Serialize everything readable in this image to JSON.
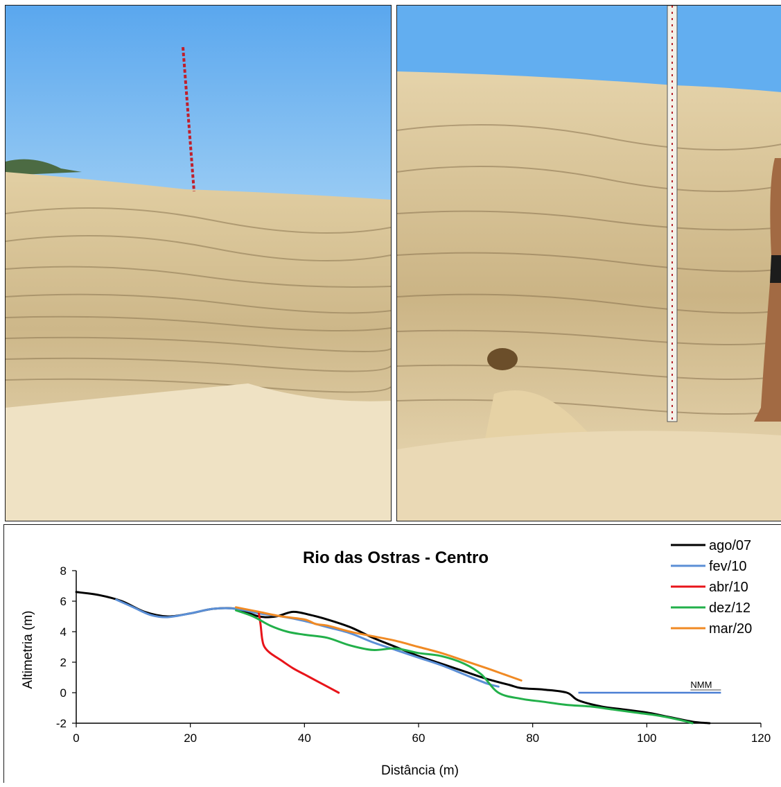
{
  "photos": [
    {
      "name": "left-photo"
    },
    {
      "name": "right-photo"
    }
  ],
  "chart_data": {
    "type": "line",
    "title": "Rio das Ostras - Centro",
    "xlabel": "Distância  (m)",
    "ylabel": "Altimetria  (m)",
    "xlim": [
      0,
      120
    ],
    "ylim": [
      -2,
      8
    ],
    "xticks": [
      0,
      20,
      40,
      60,
      80,
      100,
      120
    ],
    "yticks": [
      -2,
      0,
      2,
      4,
      6,
      8
    ],
    "grid": false,
    "legend_position": "top-right",
    "reference_line": {
      "label": "NMM",
      "y": 0,
      "x": [
        88,
        113
      ],
      "color": "#4a7fd4"
    },
    "series": [
      {
        "name": "ago/07",
        "color": "#000000",
        "x": [
          0,
          4,
          8,
          12,
          16,
          20,
          24,
          28,
          32,
          35,
          38,
          41,
          44,
          48,
          52,
          56,
          60,
          64,
          68,
          72,
          76,
          78,
          82,
          86,
          88,
          92,
          96,
          100,
          104,
          108,
          111
        ],
        "y": [
          6.6,
          6.4,
          6.0,
          5.3,
          5.0,
          5.2,
          5.5,
          5.5,
          5.0,
          5.0,
          5.3,
          5.1,
          4.8,
          4.3,
          3.6,
          3.0,
          2.4,
          1.9,
          1.4,
          0.9,
          0.5,
          0.3,
          0.2,
          0.0,
          -0.5,
          -0.9,
          -1.1,
          -1.3,
          -1.6,
          -1.9,
          -2.0
        ]
      },
      {
        "name": "fev/10",
        "color": "#5b8fd6",
        "x": [
          7,
          10,
          13,
          16,
          20,
          24,
          28,
          32,
          36,
          40,
          44,
          48,
          52,
          56,
          60,
          64,
          68,
          72,
          74
        ],
        "y": [
          6.1,
          5.6,
          5.1,
          4.95,
          5.2,
          5.5,
          5.5,
          5.2,
          5.0,
          4.7,
          4.3,
          3.9,
          3.3,
          2.8,
          2.3,
          1.8,
          1.2,
          0.6,
          0.4
        ]
      },
      {
        "name": "abr/10",
        "color": "#e8141a",
        "x": [
          32,
          32.3,
          32.6,
          33,
          34,
          36,
          38,
          40,
          42,
          44,
          46
        ],
        "y": [
          5.2,
          4.5,
          3.5,
          3.0,
          2.6,
          2.1,
          1.6,
          1.2,
          0.8,
          0.4,
          0.0
        ]
      },
      {
        "name": "dez/12",
        "color": "#22b04a",
        "x": [
          28,
          31,
          34,
          37,
          40,
          44,
          48,
          52,
          56,
          60,
          64,
          68,
          71,
          74,
          78,
          82,
          86,
          90,
          94,
          98,
          102,
          106,
          108
        ],
        "y": [
          5.4,
          5.0,
          4.4,
          4.0,
          3.8,
          3.6,
          3.1,
          2.8,
          2.9,
          2.6,
          2.4,
          1.9,
          1.2,
          0.0,
          -0.4,
          -0.6,
          -0.8,
          -0.9,
          -1.1,
          -1.3,
          -1.5,
          -1.8,
          -2.0
        ]
      },
      {
        "name": "mar/20",
        "color": "#f08a24",
        "x": [
          28,
          32,
          36,
          40,
          42,
          44,
          48,
          52,
          56,
          60,
          64,
          68,
          72,
          75,
          78
        ],
        "y": [
          5.6,
          5.3,
          5.0,
          4.8,
          4.5,
          4.4,
          4.0,
          3.7,
          3.4,
          3.0,
          2.6,
          2.1,
          1.6,
          1.2,
          0.8
        ]
      }
    ]
  }
}
